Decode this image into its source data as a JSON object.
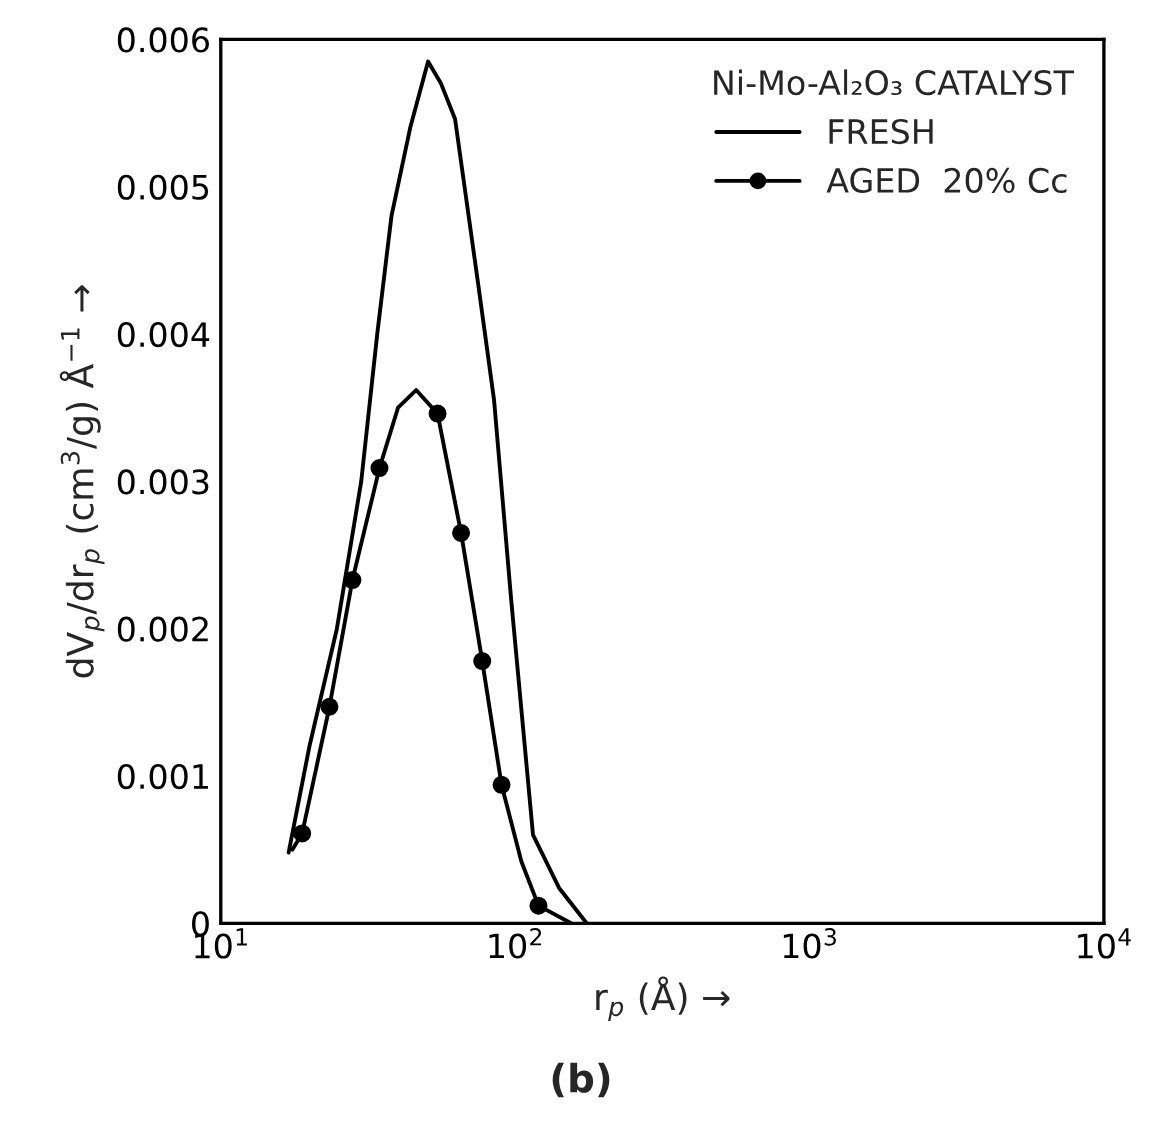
{
  "chart_data": {
    "type": "line",
    "xlabel": "r$_{p}$ (Å) →",
    "ylabel": "dV$_{p}$/dr$_{p}$ (cm$^{3}$/g) Å$^{−1}$ →",
    "legend_title": "Ni-Mo-Al₂O₃ CATALYST",
    "annotations": [
      "(b)"
    ],
    "log": "x",
    "xlim": [
      10,
      10000
    ],
    "xticks": [
      {
        "value": 10,
        "label": "10$^{1}$"
      },
      {
        "value": 100,
        "label": "10$^{2}$"
      },
      {
        "value": 1000,
        "label": "10$^{3}$"
      },
      {
        "value": 10000,
        "label": "10$^{4}$"
      }
    ],
    "ylim": [
      0,
      0.006
    ],
    "yticks": [
      0,
      0.001,
      0.002,
      0.003,
      0.004,
      0.005,
      0.006
    ],
    "grid": false,
    "legend": "top right",
    "line_style": "solid",
    "series": [
      {
        "name": "FRESH",
        "color": "#000000",
        "marker": "none",
        "x": [
          17.0,
          20.0,
          24.8,
          30.0,
          34.0,
          38.0,
          44.0,
          50.6,
          56.0,
          62.5,
          75,
          84.8,
          97,
          115,
          141,
          175
        ],
        "values": [
          0.00048,
          0.0012,
          0.002,
          0.003,
          0.004,
          0.0048,
          0.0054,
          0.00585,
          0.0057,
          0.00546,
          0.00433,
          0.00355,
          0.00219,
          0.0006,
          0.00024,
          0.0
        ]
      },
      {
        "color": "#000000",
        "marker": "none",
        "x": [
          17.5,
          18.9,
          23.4,
          28.0,
          34.6,
          40.0,
          46.1,
          54.5,
          65.5,
          77.3,
          89.9,
          105,
          120,
          155
        ],
        "values": [
          0.0005,
          0.00061,
          0.00147,
          0.00233,
          0.00309,
          0.0035,
          0.00362,
          0.00346,
          0.00265,
          0.00178,
          0.00094,
          0.00042,
          0.00012,
          0.0
        ]
      },
      {
        "name": "AGED  20% Cc",
        "type": "scatter",
        "color": "#000000",
        "marker": "circle",
        "x": [
          18.9,
          23.4,
          28.0,
          34.6,
          54.5,
          65.5,
          77.3,
          89.9,
          120
        ],
        "values": [
          0.00061,
          0.00147,
          0.00233,
          0.00309,
          0.00346,
          0.00265,
          0.00178,
          0.00094,
          0.00012
        ]
      }
    ]
  }
}
